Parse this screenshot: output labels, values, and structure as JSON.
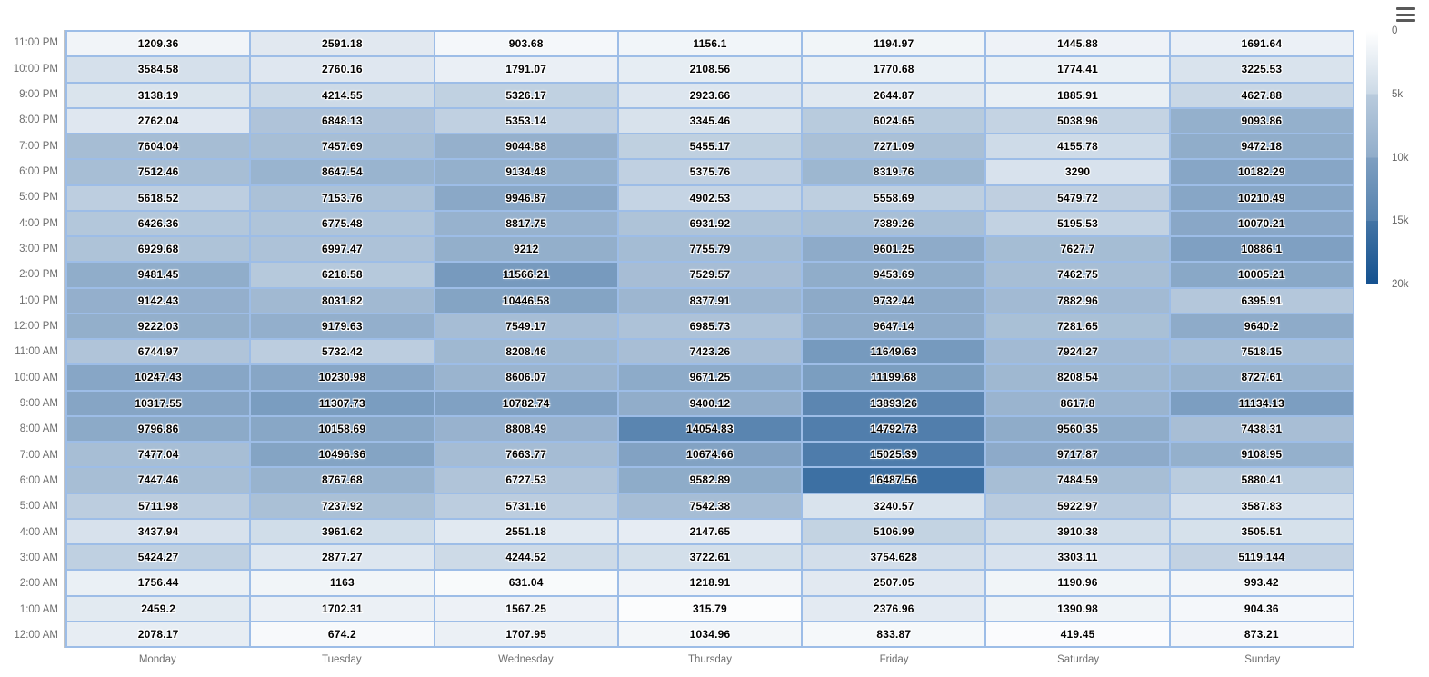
{
  "toolbar": {
    "menu_icon": "hamburger-menu"
  },
  "chart_data": {
    "type": "heatmap",
    "title": "",
    "xlabel": "",
    "ylabel": "",
    "x_categories": [
      "Monday",
      "Tuesday",
      "Wednesday",
      "Thursday",
      "Friday",
      "Saturday",
      "Sunday"
    ],
    "y_categories_top_to_bottom": [
      "11:00 PM",
      "10:00 PM",
      "9:00 PM",
      "8:00 PM",
      "7:00 PM",
      "6:00 PM",
      "5:00 PM",
      "4:00 PM",
      "3:00 PM",
      "2:00 PM",
      "1:00 PM",
      "12:00 PM",
      "11:00 AM",
      "10:00 AM",
      "9:00 AM",
      "8:00 AM",
      "7:00 AM",
      "6:00 AM",
      "5:00 AM",
      "4:00 AM",
      "3:00 AM",
      "2:00 AM",
      "1:00 AM",
      "12:00 AM"
    ],
    "rows_top_to_bottom": [
      [
        1209.36,
        2591.18,
        903.68,
        1156.1,
        1194.97,
        1445.88,
        1691.64
      ],
      [
        3584.58,
        2760.16,
        1791.07,
        2108.56,
        1770.68,
        1774.41,
        3225.53
      ],
      [
        3138.19,
        4214.55,
        5326.17,
        2923.66,
        2644.87,
        1885.91,
        4627.88
      ],
      [
        2762.04,
        6848.13,
        5353.14,
        3345.46,
        6024.65,
        5038.96,
        9093.86
      ],
      [
        7604.04,
        7457.69,
        9044.88,
        5455.17,
        7271.09,
        4155.78,
        9472.18
      ],
      [
        7512.46,
        8647.54,
        9134.48,
        5375.76,
        8319.76,
        3290,
        10182.29
      ],
      [
        5618.52,
        7153.76,
        9946.87,
        4902.53,
        5558.69,
        5479.72,
        10210.49
      ],
      [
        6426.36,
        6775.48,
        8817.75,
        6931.92,
        7389.26,
        5195.53,
        10070.21
      ],
      [
        6929.68,
        6997.47,
        9212,
        7755.79,
        9601.25,
        7627.7,
        10886.1
      ],
      [
        9481.45,
        6218.58,
        11566.21,
        7529.57,
        9453.69,
        7462.75,
        10005.21
      ],
      [
        9142.43,
        8031.82,
        10446.58,
        8377.91,
        9732.44,
        7882.96,
        6395.91
      ],
      [
        9222.03,
        9179.63,
        7549.17,
        6985.73,
        9647.14,
        7281.65,
        9640.2
      ],
      [
        6744.97,
        5732.42,
        8208.46,
        7423.26,
        11649.63,
        7924.27,
        7518.15
      ],
      [
        10247.43,
        10230.98,
        8606.07,
        9671.25,
        11199.68,
        8208.54,
        8727.61
      ],
      [
        10317.55,
        11307.73,
        10782.74,
        9400.12,
        13893.26,
        8617.8,
        11134.13
      ],
      [
        9796.86,
        10158.69,
        8808.49,
        14054.83,
        14792.73,
        9560.35,
        7438.31
      ],
      [
        7477.04,
        10496.36,
        7663.77,
        10674.66,
        15025.39,
        9717.87,
        9108.95
      ],
      [
        7447.46,
        8767.68,
        6727.53,
        9582.89,
        16487.56,
        7484.59,
        5880.41
      ],
      [
        5711.98,
        7237.92,
        5731.16,
        7542.38,
        3240.57,
        5922.97,
        3587.83
      ],
      [
        3437.94,
        3961.62,
        2551.18,
        2147.65,
        5106.99,
        3910.38,
        3505.51
      ],
      [
        5424.27,
        2877.27,
        4244.52,
        3722.61,
        3754.628,
        3303.11,
        5119.144
      ],
      [
        1756.44,
        1163,
        631.04,
        1218.91,
        2507.05,
        1190.96,
        993.42
      ],
      [
        2459.2,
        1702.31,
        1567.25,
        315.79,
        2376.96,
        1390.98,
        904.36
      ],
      [
        2078.17,
        674.2,
        1707.95,
        1034.96,
        833.87,
        419.45,
        873.21
      ]
    ],
    "color_axis": {
      "min": 0,
      "max": 20000,
      "min_color": "#ffffff",
      "max_color": "#14518f",
      "legend_labels": [
        "0",
        "5k",
        "10k",
        "15k",
        "20k"
      ],
      "legend_position": "right"
    },
    "grid_line_color": "#9dbde7",
    "axis_line_color": "#c3c3c3",
    "axis_label_color": "#6e6e6e",
    "legend_on": true,
    "gridlines_on": true
  }
}
